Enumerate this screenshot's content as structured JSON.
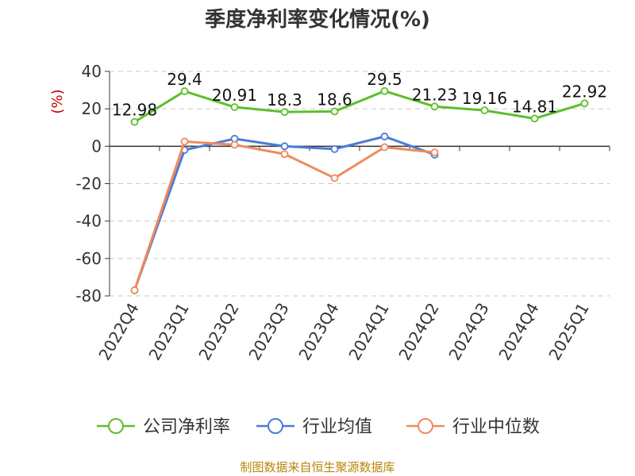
{
  "chart_data": {
    "type": "line",
    "title": "季度净利率变化情况(%)",
    "ylabel": "(%)",
    "ylim": [
      -80,
      40
    ],
    "yticks": [
      40,
      20,
      0,
      -20,
      -40,
      -60,
      -80
    ],
    "grid": true,
    "legend_position": "bottom",
    "categories": [
      "2022Q4",
      "2023Q1",
      "2023Q2",
      "2023Q3",
      "2023Q4",
      "2024Q1",
      "2024Q2",
      "2024Q3",
      "2024Q4",
      "2025Q1"
    ],
    "series": [
      {
        "name": "公司净利率",
        "color": "#5cbf2a",
        "show_labels": true,
        "values": [
          12.98,
          29.4,
          20.91,
          18.3,
          18.6,
          29.5,
          21.23,
          19.16,
          14.81,
          22.92
        ]
      },
      {
        "name": "行业均值",
        "color": "#4a7bd6",
        "show_labels": false,
        "values": [
          -77,
          -2,
          4,
          0,
          -1.5,
          5.2,
          -4.5,
          null,
          null,
          null
        ]
      },
      {
        "name": "行业中位数",
        "color": "#f08a5d",
        "show_labels": false,
        "values": [
          -77,
          2.5,
          0.8,
          -4.2,
          -17,
          -0.5,
          -3.3,
          null,
          null,
          null
        ]
      }
    ]
  },
  "source": "制图数据来自恒生聚源数据库"
}
